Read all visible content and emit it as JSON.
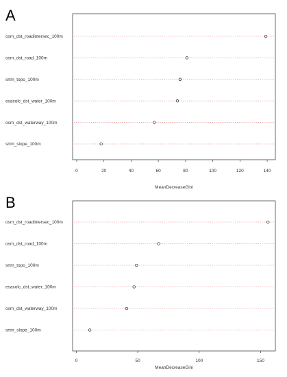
{
  "chart_data": [
    {
      "type": "scatter",
      "panel_label": "A",
      "categories": [
        "osm_dst_roadintersec_100m",
        "osm_dst_road_100m",
        "srtm_topo_100m",
        "esacolc_dst_water_100m",
        "osm_dst_waterway_100m",
        "srtm_slope_100m"
      ],
      "values": [
        139,
        81,
        76,
        74,
        57,
        18
      ],
      "xlabel": "MeanDecreaseGini",
      "ylabel": "",
      "xlim": [
        -3,
        146
      ],
      "xticks": [
        0,
        20,
        40,
        60,
        80,
        100,
        120,
        140
      ],
      "grid": true
    },
    {
      "type": "scatter",
      "panel_label": "B",
      "categories": [
        "osm_dst_roadintersec_100m",
        "osm_dst_road_100m",
        "srtm_topo_100m",
        "esacolc_dst_water_100m",
        "osm_dst_waterway_100m",
        "srtm_slope_100m"
      ],
      "values": [
        156,
        67,
        49,
        47,
        41,
        11
      ],
      "xlabel": "MeanDecreaseGini",
      "ylabel": "",
      "xlim": [
        -3,
        162
      ],
      "xticks": [
        0,
        50,
        100,
        150
      ],
      "grid": true
    }
  ]
}
